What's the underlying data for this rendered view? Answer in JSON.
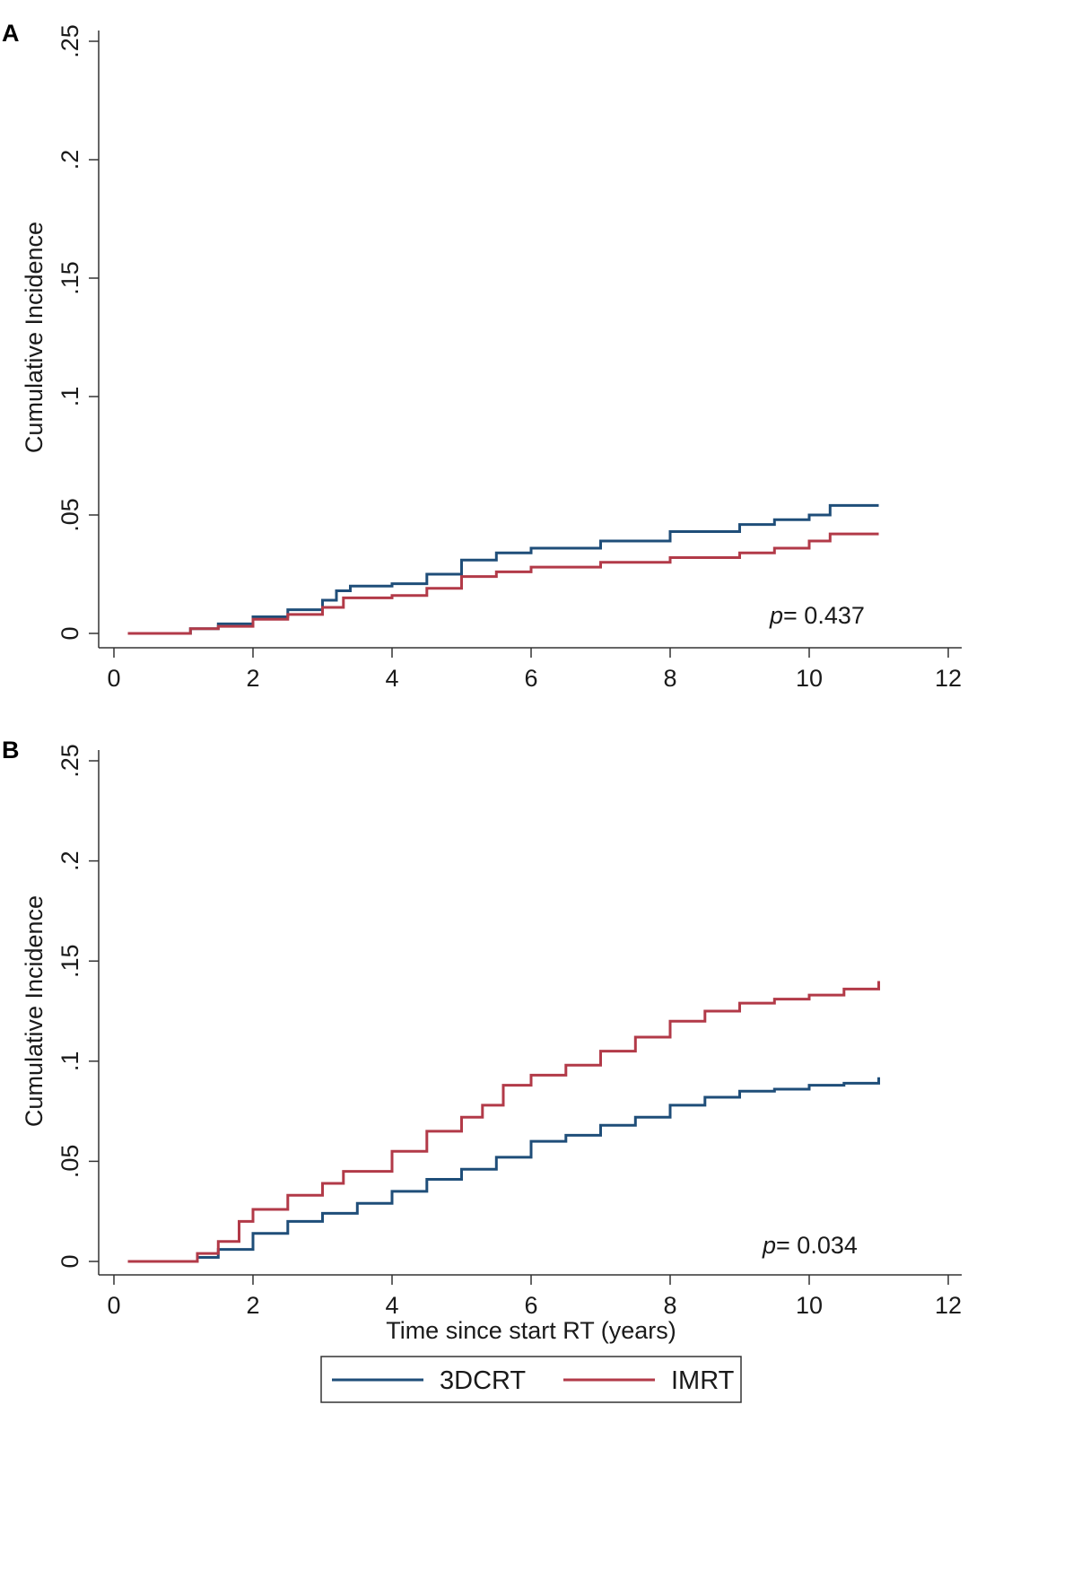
{
  "chart_data": [
    {
      "panel": "A",
      "type": "line",
      "title": "",
      "xlabel": "",
      "ylabel": "Cumulative Incidence",
      "xlim": [
        0,
        12
      ],
      "ylim": [
        0,
        0.25
      ],
      "xticks": [
        0,
        2,
        4,
        6,
        8,
        10,
        12
      ],
      "xtick_labels": [
        "0",
        "2",
        "4",
        "6",
        "8",
        "10",
        "12"
      ],
      "yticks": [
        0,
        0.05,
        0.1,
        0.15,
        0.2,
        0.25
      ],
      "ytick_labels": [
        "0",
        ".05",
        ".1",
        ".15",
        ".2",
        ".25"
      ],
      "annotation": {
        "prefix": "p",
        "text": "= 0.437"
      },
      "series": [
        {
          "name": "3DCRT",
          "color": "#1f4e79",
          "points": [
            [
              0.2,
              0
            ],
            [
              1.0,
              0
            ],
            [
              1.1,
              0.002
            ],
            [
              1.5,
              0.004
            ],
            [
              2.0,
              0.007
            ],
            [
              2.5,
              0.01
            ],
            [
              3.0,
              0.014
            ],
            [
              3.2,
              0.018
            ],
            [
              3.4,
              0.02
            ],
            [
              4.0,
              0.021
            ],
            [
              4.5,
              0.025
            ],
            [
              5.0,
              0.031
            ],
            [
              5.5,
              0.034
            ],
            [
              6.0,
              0.036
            ],
            [
              7.0,
              0.039
            ],
            [
              8.0,
              0.043
            ],
            [
              9.0,
              0.046
            ],
            [
              9.5,
              0.048
            ],
            [
              10.0,
              0.05
            ],
            [
              10.3,
              0.054
            ],
            [
              11.0,
              0.054
            ]
          ]
        },
        {
          "name": "IMRT",
          "color": "#b23a48",
          "points": [
            [
              0.2,
              0
            ],
            [
              1.0,
              0
            ],
            [
              1.1,
              0.002
            ],
            [
              1.5,
              0.003
            ],
            [
              2.0,
              0.006
            ],
            [
              2.5,
              0.008
            ],
            [
              3.0,
              0.011
            ],
            [
              3.3,
              0.015
            ],
            [
              4.0,
              0.016
            ],
            [
              4.5,
              0.019
            ],
            [
              5.0,
              0.024
            ],
            [
              5.5,
              0.026
            ],
            [
              6.0,
              0.028
            ],
            [
              7.0,
              0.03
            ],
            [
              8.0,
              0.032
            ],
            [
              9.0,
              0.034
            ],
            [
              9.5,
              0.036
            ],
            [
              10.0,
              0.039
            ],
            [
              10.3,
              0.042
            ],
            [
              11.0,
              0.042
            ]
          ]
        }
      ]
    },
    {
      "panel": "B",
      "type": "line",
      "title": "",
      "xlabel": "Time since start RT (years)",
      "ylabel": "Cumulative Incidence",
      "xlim": [
        0,
        12
      ],
      "ylim": [
        0,
        0.25
      ],
      "xticks": [
        0,
        2,
        4,
        6,
        8,
        10,
        12
      ],
      "xtick_labels": [
        "0",
        "2",
        "4",
        "6",
        "8",
        "10",
        "12"
      ],
      "yticks": [
        0,
        0.05,
        0.1,
        0.15,
        0.2,
        0.25
      ],
      "ytick_labels": [
        "0",
        ".05",
        ".1",
        ".15",
        ".2",
        ".25"
      ],
      "annotation": {
        "prefix": "p",
        "text": "= 0.034"
      },
      "series": [
        {
          "name": "3DCRT",
          "color": "#1f4e79",
          "points": [
            [
              0.2,
              0
            ],
            [
              1.05,
              0
            ],
            [
              1.2,
              0.002
            ],
            [
              1.5,
              0.006
            ],
            [
              2.0,
              0.014
            ],
            [
              2.5,
              0.02
            ],
            [
              3.0,
              0.024
            ],
            [
              3.5,
              0.029
            ],
            [
              4.0,
              0.035
            ],
            [
              4.5,
              0.041
            ],
            [
              5.0,
              0.046
            ],
            [
              5.5,
              0.052
            ],
            [
              6.0,
              0.06
            ],
            [
              6.5,
              0.063
            ],
            [
              7.0,
              0.068
            ],
            [
              7.5,
              0.072
            ],
            [
              8.0,
              0.078
            ],
            [
              8.5,
              0.082
            ],
            [
              9.0,
              0.085
            ],
            [
              9.5,
              0.086
            ],
            [
              10.0,
              0.088
            ],
            [
              10.5,
              0.089
            ],
            [
              11.0,
              0.092
            ]
          ]
        },
        {
          "name": "IMRT",
          "color": "#b23a48",
          "points": [
            [
              0.2,
              0
            ],
            [
              1.05,
              0
            ],
            [
              1.2,
              0.004
            ],
            [
              1.5,
              0.01
            ],
            [
              1.8,
              0.02
            ],
            [
              2.0,
              0.026
            ],
            [
              2.5,
              0.033
            ],
            [
              3.0,
              0.039
            ],
            [
              3.3,
              0.045
            ],
            [
              4.0,
              0.055
            ],
            [
              4.5,
              0.065
            ],
            [
              5.0,
              0.072
            ],
            [
              5.3,
              0.078
            ],
            [
              5.6,
              0.088
            ],
            [
              6.0,
              0.093
            ],
            [
              6.5,
              0.098
            ],
            [
              7.0,
              0.105
            ],
            [
              7.5,
              0.112
            ],
            [
              8.0,
              0.12
            ],
            [
              8.5,
              0.125
            ],
            [
              9.0,
              0.129
            ],
            [
              9.5,
              0.131
            ],
            [
              10.0,
              0.133
            ],
            [
              10.5,
              0.136
            ],
            [
              11.0,
              0.14
            ]
          ]
        }
      ]
    }
  ],
  "legend": {
    "items": [
      {
        "label": "3DCRT",
        "color": "#1f4e79"
      },
      {
        "label": "IMRT",
        "color": "#b23a48"
      }
    ]
  }
}
